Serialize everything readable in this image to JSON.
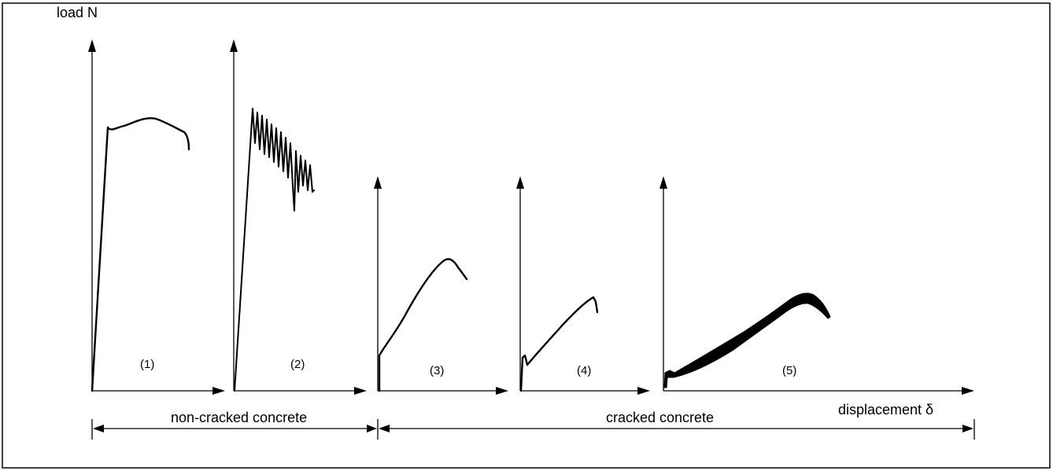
{
  "chart_data": {
    "type": "line",
    "title": "",
    "ylabel": "load N",
    "xlabel": "displacement δ",
    "grid": false,
    "legend": "none",
    "panels": [
      {
        "label": "(1)",
        "group": "non-cracked concrete",
        "shape": "steep linear rise, rounded plateau at peak, slight drop"
      },
      {
        "label": "(2)",
        "group": "non-cracked concrete",
        "shape": "steep linear rise, sharp peak, oscillating decline"
      },
      {
        "label": "(3)",
        "group": "cracked concrete",
        "shape": "gradual rise to rounded peak, then decline"
      },
      {
        "label": "(4)",
        "group": "cracked concrete",
        "shape": "small initial peak, then near-linear rise"
      },
      {
        "label": "(5)",
        "group": "cracked concrete",
        "shape": "broad band rising to a wide rounded peak, then decline"
      }
    ],
    "groups": [
      "non-cracked concrete",
      "cracked concrete"
    ]
  }
}
